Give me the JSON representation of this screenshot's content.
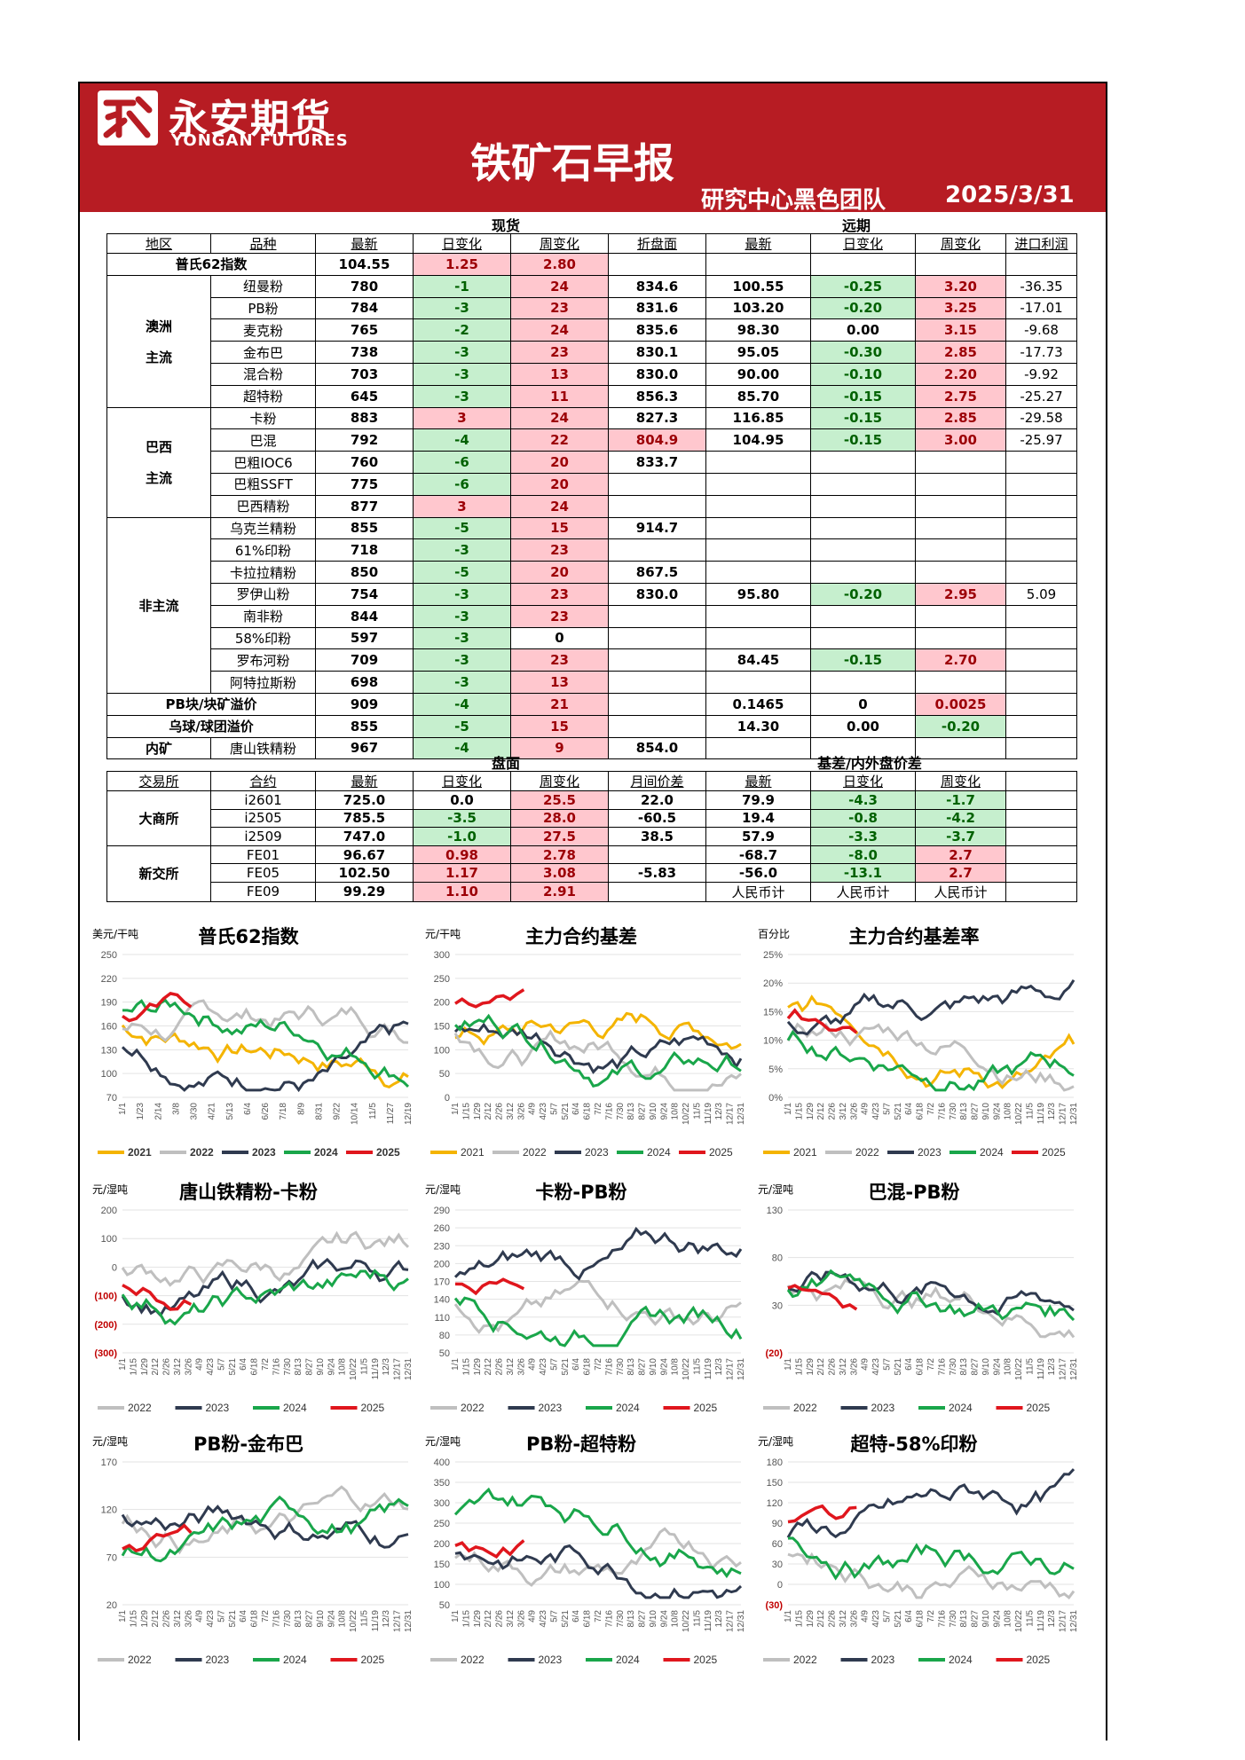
{
  "header": {
    "logo_cn": "永安期货",
    "logo_en": "YONGAN FUTURES",
    "title": "铁矿石早报",
    "team": "研究中心黑色团队",
    "date": "2025/3/31"
  },
  "spot_group": "现货",
  "forward_group": "远期",
  "spot_headers": [
    "地区",
    "品种",
    "最新",
    "日变化",
    "周变化",
    "折盘面",
    "最新",
    "日变化",
    "周变化",
    "进口利润"
  ],
  "platts": {
    "label": "普氏62指数",
    "latest": "104.55",
    "day": "1.25",
    "week": "2.80"
  },
  "regions": {
    "au": "澳洲\n主流",
    "br": "巴西\n主流",
    "other": "非主流",
    "inland": "内矿"
  },
  "spot_rows": [
    {
      "name": "纽曼粉",
      "latest": "780",
      "day": "-1",
      "dc": "g",
      "week": "24",
      "wc": "r",
      "conv": "834.6",
      "fl": "100.55",
      "fd": "-0.25",
      "fdc": "g",
      "fw": "3.20",
      "fwc": "r",
      "imp": "-36.35"
    },
    {
      "name": "PB粉",
      "latest": "784",
      "day": "-3",
      "dc": "g",
      "week": "23",
      "wc": "r",
      "conv": "831.6",
      "fl": "103.20",
      "fd": "-0.20",
      "fdc": "g",
      "fw": "3.25",
      "fwc": "r",
      "imp": "-17.01"
    },
    {
      "name": "麦克粉",
      "latest": "765",
      "day": "-2",
      "dc": "g",
      "week": "24",
      "wc": "r",
      "conv": "835.6",
      "fl": "98.30",
      "fd": "0.00",
      "fdc": "",
      "fw": "3.15",
      "fwc": "r",
      "imp": "-9.68"
    },
    {
      "name": "金布巴",
      "latest": "738",
      "day": "-3",
      "dc": "g",
      "week": "23",
      "wc": "r",
      "conv": "830.1",
      "fl": "95.05",
      "fd": "-0.30",
      "fdc": "g",
      "fw": "2.85",
      "fwc": "r",
      "imp": "-17.73"
    },
    {
      "name": "混合粉",
      "latest": "703",
      "day": "-3",
      "dc": "g",
      "week": "13",
      "wc": "r",
      "conv": "830.0",
      "fl": "90.00",
      "fd": "-0.10",
      "fdc": "g",
      "fw": "2.20",
      "fwc": "r",
      "imp": "-9.92"
    },
    {
      "name": "超特粉",
      "latest": "645",
      "day": "-3",
      "dc": "g",
      "week": "11",
      "wc": "r",
      "conv": "856.3",
      "fl": "85.70",
      "fd": "-0.15",
      "fdc": "g",
      "fw": "2.75",
      "fwc": "r",
      "imp": "-25.27"
    },
    {
      "name": "卡粉",
      "latest": "883",
      "day": "3",
      "dc": "r",
      "week": "24",
      "wc": "r",
      "conv": "827.3",
      "fl": "116.85",
      "fd": "-0.15",
      "fdc": "g",
      "fw": "2.85",
      "fwc": "r",
      "imp": "-29.58"
    },
    {
      "name": "巴混",
      "latest": "792",
      "day": "-4",
      "dc": "g",
      "week": "22",
      "wc": "r",
      "conv": "804.9",
      "cc": "r",
      "fl": "104.95",
      "fd": "-0.15",
      "fdc": "g",
      "fw": "3.00",
      "fwc": "r",
      "imp": "-25.97"
    },
    {
      "name": "巴粗IOC6",
      "latest": "760",
      "day": "-6",
      "dc": "g",
      "week": "20",
      "wc": "r",
      "conv": "833.7",
      "fl": "",
      "fd": "",
      "fdc": "",
      "fw": "",
      "fwc": "",
      "imp": ""
    },
    {
      "name": "巴粗SSFT",
      "latest": "775",
      "day": "-6",
      "dc": "g",
      "week": "20",
      "wc": "r",
      "conv": "",
      "fl": "",
      "fd": "",
      "fdc": "",
      "fw": "",
      "fwc": "",
      "imp": ""
    },
    {
      "name": "巴西精粉",
      "latest": "877",
      "day": "3",
      "dc": "r",
      "week": "24",
      "wc": "r",
      "conv": "",
      "fl": "",
      "fd": "",
      "fdc": "",
      "fw": "",
      "fwc": "",
      "imp": ""
    },
    {
      "name": "乌克兰精粉",
      "latest": "855",
      "day": "-5",
      "dc": "g",
      "week": "15",
      "wc": "r",
      "conv": "914.7",
      "fl": "",
      "fd": "",
      "fdc": "",
      "fw": "",
      "fwc": "",
      "imp": ""
    },
    {
      "name": "61%印粉",
      "latest": "718",
      "day": "-3",
      "dc": "g",
      "week": "23",
      "wc": "r",
      "conv": "",
      "fl": "",
      "fd": "",
      "fdc": "",
      "fw": "",
      "fwc": "",
      "imp": ""
    },
    {
      "name": "卡拉拉精粉",
      "latest": "850",
      "day": "-5",
      "dc": "g",
      "week": "20",
      "wc": "r",
      "conv": "867.5",
      "fl": "",
      "fd": "",
      "fdc": "",
      "fw": "",
      "fwc": "",
      "imp": ""
    },
    {
      "name": "罗伊山粉",
      "latest": "754",
      "day": "-3",
      "dc": "g",
      "week": "23",
      "wc": "r",
      "conv": "830.0",
      "fl": "95.80",
      "fd": "-0.20",
      "fdc": "g",
      "fw": "2.95",
      "fwc": "r",
      "imp": "5.09"
    },
    {
      "name": "南非粉",
      "latest": "844",
      "day": "-3",
      "dc": "g",
      "week": "23",
      "wc": "r",
      "conv": "",
      "fl": "",
      "fd": "",
      "fdc": "",
      "fw": "",
      "fwc": "",
      "imp": ""
    },
    {
      "name": "58%印粉",
      "latest": "597",
      "day": "-3",
      "dc": "g",
      "week": "0",
      "wc": "",
      "conv": "",
      "fl": "",
      "fd": "",
      "fdc": "",
      "fw": "",
      "fwc": "",
      "imp": ""
    },
    {
      "name": "罗布河粉",
      "latest": "709",
      "day": "-3",
      "dc": "g",
      "week": "23",
      "wc": "r",
      "conv": "",
      "fl": "84.45",
      "fd": "-0.15",
      "fdc": "g",
      "fw": "2.70",
      "fwc": "r",
      "imp": ""
    },
    {
      "name": "阿特拉斯粉",
      "latest": "698",
      "day": "-3",
      "dc": "g",
      "week": "13",
      "wc": "r",
      "conv": "",
      "fl": "",
      "fd": "",
      "fdc": "",
      "fw": "",
      "fwc": "",
      "imp": ""
    }
  ],
  "premium_rows": [
    {
      "name": "PB块/块矿溢价",
      "latest": "909",
      "day": "-4",
      "dc": "g",
      "week": "21",
      "wc": "r",
      "fl": "0.1465",
      "fd": "0",
      "fdc": "",
      "fw": "0.0025",
      "fwc": "r"
    },
    {
      "name": "乌球/球团溢价",
      "latest": "855",
      "day": "-5",
      "dc": "g",
      "week": "15",
      "wc": "r",
      "fl": "14.30",
      "fd": "0.00",
      "fdc": "",
      "fw": "-0.20",
      "fwc": "g"
    }
  ],
  "inland_row": {
    "name": "唐山铁精粉",
    "latest": "967",
    "day": "-4",
    "dc": "g",
    "week": "9",
    "wc": "r",
    "conv": "854.0"
  },
  "futures_group": "盘面",
  "basis_group": "基差/内外盘价差",
  "fut_headers": [
    "交易所",
    "合约",
    "最新",
    "日变化",
    "周变化",
    "月间价差",
    "最新",
    "日变化",
    "周变化"
  ],
  "exchanges": {
    "dce": "大商所",
    "sgx": "新交所"
  },
  "fut_rows": [
    {
      "c": "i2601",
      "latest": "725.0",
      "day": "0.0",
      "dc": "",
      "week": "25.5",
      "wc": "r",
      "spread": "22.0",
      "bl": "79.9",
      "bd": "-4.3",
      "bdc": "g",
      "bw": "-1.7",
      "bwc": "g"
    },
    {
      "c": "i2505",
      "latest": "785.5",
      "day": "-3.5",
      "dc": "g",
      "week": "28.0",
      "wc": "r",
      "spread": "-60.5",
      "bl": "19.4",
      "bd": "-0.8",
      "bdc": "g",
      "bw": "-4.2",
      "bwc": "g"
    },
    {
      "c": "i2509",
      "latest": "747.0",
      "day": "-1.0",
      "dc": "g",
      "week": "27.5",
      "wc": "r",
      "spread": "38.5",
      "bl": "57.9",
      "bd": "-3.3",
      "bdc": "g",
      "bw": "-3.7",
      "bwc": "g"
    },
    {
      "c": "FE01",
      "latest": "96.67",
      "day": "0.98",
      "dc": "r",
      "week": "2.78",
      "wc": "r",
      "spread": "",
      "bl": "-68.7",
      "bd": "-8.0",
      "bdc": "g",
      "bw": "2.7",
      "bwc": "r"
    },
    {
      "c": "FE05",
      "latest": "102.50",
      "day": "1.17",
      "dc": "r",
      "week": "3.08",
      "wc": "r",
      "spread": "-5.83",
      "bl": "-56.0",
      "bd": "-13.1",
      "bdc": "g",
      "bw": "2.7",
      "bwc": "r"
    },
    {
      "c": "FE09",
      "latest": "99.29",
      "day": "1.10",
      "dc": "r",
      "week": "2.91",
      "wc": "r",
      "spread": "",
      "bl": "人民币计",
      "bd": "人民币计",
      "bdc": "",
      "bw": "人民币计",
      "bwc": ""
    }
  ],
  "colors": {
    "y2021": "#f4b400",
    "y2022": "#bfbfbf",
    "y2023": "#2f3a4f",
    "y2024": "#19a64a",
    "y2025": "#e0161d",
    "brand": "#b71c23"
  },
  "charts": [
    {
      "title": "普氏62指数",
      "unit": "美元/干吨",
      "ticks": [
        "250",
        "220",
        "190",
        "160",
        "130",
        "100",
        "70"
      ],
      "red_ticks": [],
      "x": [
        "1/1",
        "1/23",
        "2/14",
        "3/8",
        "3/30",
        "4/21",
        "5/13",
        "6/4",
        "6/26",
        "7/18",
        "8/9",
        "8/31",
        "9/22",
        "10/14",
        "11/5",
        "11/27",
        "12/19"
      ],
      "legend": [
        "2021",
        "2022",
        "2023",
        "2024",
        "2025"
      ]
    },
    {
      "title": "主力合约基差",
      "unit": "元/干吨",
      "ticks": [
        "300",
        "250",
        "200",
        "150",
        "100",
        "50",
        "0"
      ],
      "red_ticks": [],
      "x": [
        "1/1",
        "1/15",
        "1/29",
        "2/12",
        "2/26",
        "3/12",
        "3/26",
        "4/9",
        "4/23",
        "5/7",
        "5/21",
        "6/4",
        "6/18",
        "7/2",
        "7/16",
        "7/30",
        "8/13",
        "8/27",
        "9/10",
        "9/24",
        "10/8",
        "10/22",
        "11/5",
        "11/19",
        "12/3",
        "12/17",
        "12/31"
      ],
      "legend": [
        "2021",
        "2022",
        "2023",
        "2024",
        "2025"
      ]
    },
    {
      "title": "主力合约基差率",
      "unit": "百分比",
      "ticks": [
        "25%",
        "20%",
        "15%",
        "10%",
        "5%",
        "0%"
      ],
      "red_ticks": [],
      "x": [
        "1/1",
        "1/15",
        "1/29",
        "2/12",
        "2/26",
        "3/12",
        "3/26",
        "4/9",
        "4/23",
        "5/7",
        "5/21",
        "6/4",
        "6/18",
        "7/2",
        "7/16",
        "7/30",
        "8/13",
        "8/27",
        "9/10",
        "9/24",
        "10/8",
        "10/22",
        "11/5",
        "11/19",
        "12/3",
        "12/17",
        "12/31"
      ],
      "legend": [
        "2021",
        "2022",
        "2023",
        "2024",
        "2025"
      ]
    },
    {
      "title": "唐山铁精粉-卡粉",
      "unit": "元/湿吨",
      "ticks": [
        "200",
        "100",
        "0",
        "(100)",
        "(200)",
        "(300)"
      ],
      "red_ticks": [
        "(100)",
        "(200)",
        "(300)"
      ],
      "x": [
        "1/1",
        "1/15",
        "1/29",
        "2/12",
        "2/26",
        "3/12",
        "3/26",
        "4/9",
        "4/23",
        "5/7",
        "5/21",
        "6/4",
        "6/18",
        "7/2",
        "7/16",
        "7/30",
        "8/13",
        "8/27",
        "9/10",
        "9/24",
        "10/8",
        "10/22",
        "11/5",
        "11/19",
        "12/3",
        "12/17",
        "12/31"
      ],
      "legend": [
        "2022",
        "2023",
        "2024",
        "2025"
      ]
    },
    {
      "title": "卡粉-PB粉",
      "unit": "元/湿吨",
      "ticks": [
        "290",
        "260",
        "230",
        "200",
        "170",
        "140",
        "110",
        "80",
        "50"
      ],
      "red_ticks": [],
      "x": [
        "1/1",
        "1/15",
        "1/29",
        "2/12",
        "2/26",
        "3/12",
        "3/26",
        "4/9",
        "4/23",
        "5/7",
        "5/21",
        "6/4",
        "6/18",
        "7/2",
        "7/16",
        "7/30",
        "8/13",
        "8/27",
        "9/10",
        "9/24",
        "10/8",
        "10/22",
        "11/5",
        "11/19",
        "12/3",
        "12/17",
        "12/31"
      ],
      "legend": [
        "2022",
        "2023",
        "2024",
        "2025"
      ]
    },
    {
      "title": "巴混-PB粉",
      "unit": "元/湿吨",
      "ticks": [
        "130",
        "80",
        "30",
        "(20)"
      ],
      "red_ticks": [
        "(20)"
      ],
      "x": [
        "1/1",
        "1/15",
        "1/29",
        "2/12",
        "2/26",
        "3/12",
        "3/26",
        "4/9",
        "4/23",
        "5/7",
        "5/21",
        "6/4",
        "6/18",
        "7/2",
        "7/16",
        "7/30",
        "8/13",
        "8/27",
        "9/10",
        "9/24",
        "10/8",
        "10/22",
        "11/5",
        "11/19",
        "12/3",
        "12/17",
        "12/31"
      ],
      "legend": [
        "2022",
        "2023",
        "2024",
        "2025"
      ]
    },
    {
      "title": "PB粉-金布巴",
      "unit": "元/湿吨",
      "ticks": [
        "170",
        "120",
        "70",
        "20"
      ],
      "red_ticks": [],
      "x": [
        "1/1",
        "1/15",
        "1/29",
        "2/12",
        "2/26",
        "3/12",
        "3/26",
        "4/9",
        "4/23",
        "5/7",
        "5/21",
        "6/4",
        "6/18",
        "7/2",
        "7/16",
        "7/30",
        "8/13",
        "8/27",
        "9/10",
        "9/24",
        "10/8",
        "10/22",
        "11/5",
        "11/19",
        "12/3",
        "12/17",
        "12/31"
      ],
      "legend": [
        "2022",
        "2023",
        "2024",
        "2025"
      ]
    },
    {
      "title": "PB粉-超特粉",
      "unit": "元/湿吨",
      "ticks": [
        "400",
        "350",
        "300",
        "250",
        "200",
        "150",
        "100",
        "50"
      ],
      "red_ticks": [],
      "x": [
        "1/1",
        "1/15",
        "1/29",
        "2/12",
        "2/26",
        "3/12",
        "3/26",
        "4/9",
        "4/23",
        "5/7",
        "5/21",
        "6/4",
        "6/18",
        "7/2",
        "7/16",
        "7/30",
        "8/13",
        "8/27",
        "9/10",
        "9/24",
        "10/8",
        "10/22",
        "11/5",
        "11/19",
        "12/3",
        "12/17",
        "12/31"
      ],
      "legend": [
        "2022",
        "2023",
        "2024",
        "2025"
      ]
    },
    {
      "title": "超特-58%印粉",
      "unit": "元/湿吨",
      "ticks": [
        "180",
        "150",
        "120",
        "90",
        "60",
        "30",
        "0",
        "(30)"
      ],
      "red_ticks": [
        "(30)"
      ],
      "x": [
        "1/1",
        "1/15",
        "1/29",
        "2/12",
        "2/26",
        "3/12",
        "3/26",
        "4/9",
        "4/23",
        "5/7",
        "5/21",
        "6/4",
        "6/18",
        "7/2",
        "7/16",
        "7/30",
        "8/13",
        "8/27",
        "9/10",
        "9/24",
        "10/8",
        "10/22",
        "11/5",
        "11/19",
        "12/3",
        "12/17",
        "12/31"
      ],
      "legend": [
        "2022",
        "2023",
        "2024",
        "2025"
      ]
    }
  ]
}
